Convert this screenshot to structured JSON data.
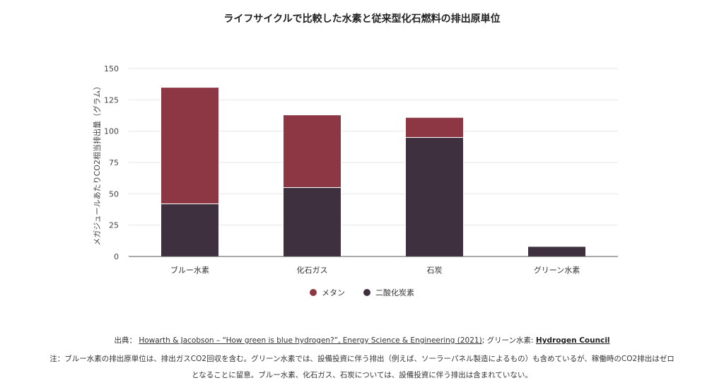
{
  "colors": {
    "methane": "#8e3744",
    "co2": "#3f3040",
    "grid": "#e6e6e6",
    "axis": "#555555"
  },
  "chart_data": {
    "type": "bar",
    "stacked": true,
    "title": "ライフサイクルで比較した水素と従来型化石燃料の排出原単位",
    "xlabel": "",
    "ylabel": "メガジュールあたりCO2相当排出量（グラム）",
    "ylim": [
      0,
      150
    ],
    "yticks": [
      0,
      25,
      50,
      75,
      100,
      125,
      150
    ],
    "categories": [
      "ブルー水素",
      "化石ガス",
      "石炭",
      "グリーン水素"
    ],
    "series": [
      {
        "name": "二酸化炭素",
        "key": "co2",
        "values": [
          42,
          55,
          95,
          8
        ]
      },
      {
        "name": "メタン",
        "key": "methane",
        "values": [
          93,
          58,
          16,
          0
        ]
      }
    ],
    "legend": [
      "メタン",
      "二酸化炭素"
    ],
    "legend_position": "bottom-center",
    "grid": true
  },
  "source": {
    "prefix": "出典：",
    "link1": "Howarth & Jacobson – “How green is blue hydrogen?”, Energy Science & Engineering (2021)",
    "middle": "; グリーン水素: ",
    "link2": "Hydrogen Council"
  },
  "note": {
    "line1": "注：ブルー水素の排出原単位は、排出ガスCO2回収を含む。グリーン水素では、設備投資に伴う排出（例えば、ソーラーパネル製造によるもの）も含めているが、稼働時のCO2排出はゼロ",
    "line2": "となることに留意。ブルー水素、化石ガス、石炭については、設備投資に伴う排出は含まれていない。"
  }
}
